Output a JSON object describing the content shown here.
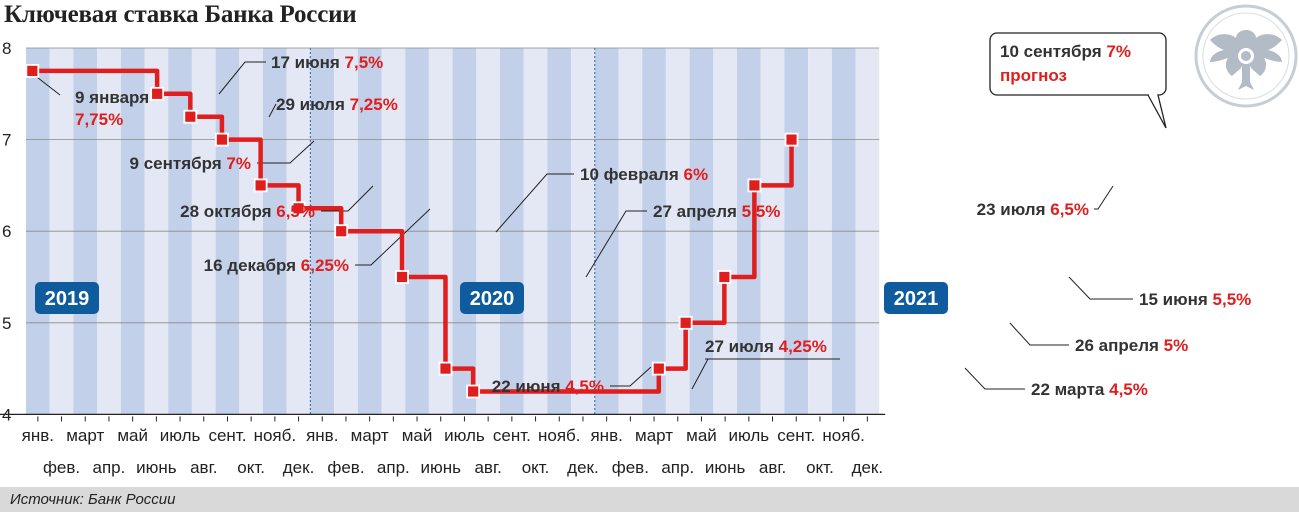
{
  "title": "Ключевая ставка Банка России",
  "source": "Источник: Банк России",
  "colors": {
    "line": "#e01e1e",
    "band_dark": "#c3d0ea",
    "band_light": "#e4e8f4",
    "year_badge": "#0e5c9e",
    "annotation_value": "#e01e1e"
  },
  "logo": "bank-of-russia-eagle-icon",
  "chart_data": {
    "type": "line",
    "step": true,
    "ylim": [
      4,
      8
    ],
    "yticks": [
      "4",
      "5",
      "6",
      "7",
      "8"
    ],
    "xlabels_top": [
      "янв.",
      "март",
      "май",
      "июль",
      "сент.",
      "нояб.",
      "янв.",
      "март",
      "май",
      "июль",
      "сент.",
      "нояб.",
      "янв.",
      "март",
      "май",
      "июль",
      "сент.",
      "нояб."
    ],
    "xlabels_bottom": [
      "фев.",
      "апр.",
      "июнь",
      "авг.",
      "окт.",
      "дек.",
      "фев.",
      "апр.",
      "июнь",
      "авг.",
      "окт.",
      "дек.",
      "фев.",
      "апр.",
      "июнь",
      "авг.",
      "окт.",
      "дек."
    ],
    "years": [
      "2019",
      "2020",
      "2021"
    ],
    "points": [
      {
        "date": "2019-01-09",
        "value": 7.75
      },
      {
        "date": "2019-06-17",
        "value": 7.5
      },
      {
        "date": "2019-07-29",
        "value": 7.25
      },
      {
        "date": "2019-09-09",
        "value": 7.0
      },
      {
        "date": "2019-10-28",
        "value": 6.5
      },
      {
        "date": "2019-12-16",
        "value": 6.25
      },
      {
        "date": "2020-02-10",
        "value": 6.0
      },
      {
        "date": "2020-04-27",
        "value": 5.5
      },
      {
        "date": "2020-06-22",
        "value": 4.5
      },
      {
        "date": "2020-07-27",
        "value": 4.25
      },
      {
        "date": "2021-03-22",
        "value": 4.5
      },
      {
        "date": "2021-04-26",
        "value": 5.0
      },
      {
        "date": "2021-06-15",
        "value": 5.5
      },
      {
        "date": "2021-07-23",
        "value": 6.5
      },
      {
        "date": "2021-09-10",
        "value": 7.0
      }
    ],
    "annotations": [
      {
        "lines": [
          {
            "date": "9 января",
            "value": ""
          },
          {
            "date": "",
            "value": "7,75%"
          }
        ]
      },
      {
        "lines": [
          {
            "date": "17 июня ",
            "value": "7,5%"
          }
        ]
      },
      {
        "lines": [
          {
            "date": "29 июля ",
            "value": "7,25%"
          }
        ]
      },
      {
        "lines": [
          {
            "date": "9 сентября ",
            "value": "7%"
          }
        ]
      },
      {
        "lines": [
          {
            "date": "28 октября ",
            "value": "6,5%"
          }
        ]
      },
      {
        "lines": [
          {
            "date": "16 декабря ",
            "value": "6,25%"
          }
        ]
      },
      {
        "lines": [
          {
            "date": "10 февраля ",
            "value": "6%"
          }
        ]
      },
      {
        "lines": [
          {
            "date": "27 апреля ",
            "value": "5,5%"
          }
        ]
      },
      {
        "lines": [
          {
            "date": "22 июня ",
            "value": "4,5%"
          }
        ]
      },
      {
        "lines": [
          {
            "date": "27 июля ",
            "value": "4,25%"
          }
        ]
      },
      {
        "lines": [
          {
            "date": "22 марта ",
            "value": "4,5%"
          }
        ]
      },
      {
        "lines": [
          {
            "date": "26 апреля ",
            "value": "5%"
          }
        ]
      },
      {
        "lines": [
          {
            "date": "15 июня ",
            "value": "5,5%"
          }
        ]
      },
      {
        "lines": [
          {
            "date": "23 июля ",
            "value": "6,5%"
          }
        ]
      }
    ],
    "callout": {
      "date": "10 сентября ",
      "value": "7%",
      "line2": "прогноз"
    }
  }
}
